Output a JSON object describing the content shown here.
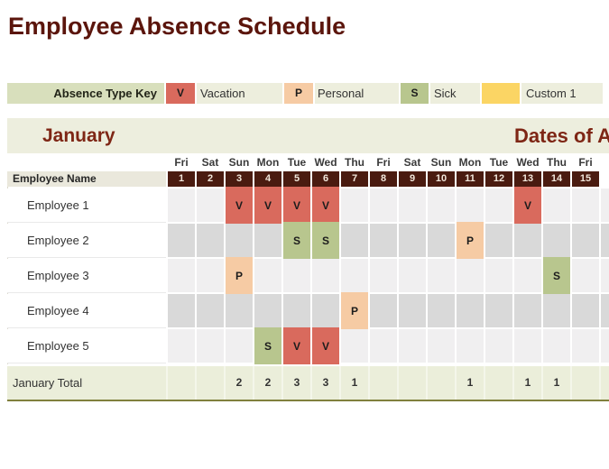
{
  "title": "Employee Absence Schedule",
  "legend": {
    "label": "Absence Type Key",
    "types": [
      {
        "code": "V",
        "name": "Vacation",
        "color": "#d96a5d"
      },
      {
        "code": "P",
        "name": "Personal",
        "color": "#f6cba4"
      },
      {
        "code": "S",
        "name": "Sick",
        "color": "#b8c68e"
      },
      {
        "code": "",
        "name": "Custom 1",
        "color": "#fbd564"
      }
    ]
  },
  "month": {
    "name": "January",
    "dates_heading": "Dates of Absence",
    "total_label": "January Total"
  },
  "grid": {
    "name_header": "Employee Name",
    "day_names": [
      "Fri",
      "Sat",
      "Sun",
      "Mon",
      "Tue",
      "Wed",
      "Thu",
      "Fri",
      "Sat",
      "Sun",
      "Mon",
      "Tue",
      "Wed",
      "Thu",
      "Fri"
    ],
    "dates": [
      1,
      2,
      3,
      4,
      5,
      6,
      7,
      8,
      9,
      10,
      11,
      12,
      13,
      14,
      15
    ],
    "employees": [
      {
        "name": "Employee 1",
        "absences": {
          "3": "V",
          "4": "V",
          "5": "V",
          "6": "V",
          "13": "V"
        }
      },
      {
        "name": "Employee 2",
        "absences": {
          "5": "S",
          "6": "S",
          "11": "P"
        }
      },
      {
        "name": "Employee 3",
        "absences": {
          "3": "P",
          "14": "S"
        }
      },
      {
        "name": "Employee 4",
        "absences": {
          "7": "P"
        }
      },
      {
        "name": "Employee 5",
        "absences": {
          "4": "S",
          "5": "V",
          "6": "V"
        }
      }
    ],
    "totals": [
      "",
      "",
      "2",
      "2",
      "3",
      "3",
      "1",
      "",
      "",
      "",
      "1",
      "",
      "1",
      "1",
      ""
    ]
  },
  "colors": {
    "title_text": "#5b150c",
    "month_heading_text": "#7e2615",
    "date_header_bg": "#4a1b10",
    "date_header_text": "#f1e7db",
    "band_bg": "#edeede",
    "key_label_bg": "#d8dfbc",
    "key_row_bg": "#edeedd",
    "row_light": "#f0eff0",
    "row_dark": "#d9d9d9",
    "name_header_bg": "#eae8dc",
    "total_row_bg": "#ebeeda",
    "total_row_border": "#80803d"
  }
}
